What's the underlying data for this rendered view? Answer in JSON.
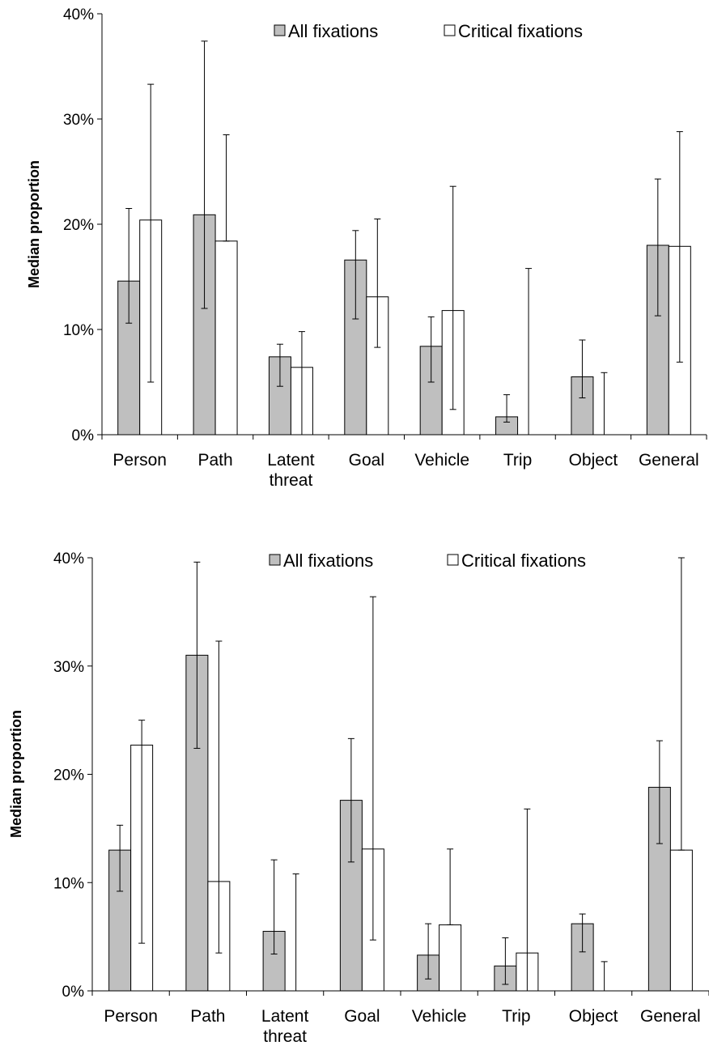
{
  "chart_data": [
    {
      "type": "bar",
      "title": "",
      "xlabel": "",
      "ylabel": "Median proportion",
      "ylim": [
        0,
        40
      ],
      "yticks": [
        "0%",
        "10%",
        "20%",
        "30%",
        "40%"
      ],
      "grid": false,
      "legend_position": "top",
      "categories": [
        "Person",
        "Path",
        "Latent\nthreat",
        "Goal",
        "Vehicle",
        "Trip",
        "Object",
        "General"
      ],
      "series": [
        {
          "name": "All fixations",
          "color": "#bfbfbf",
          "values": [
            14.6,
            20.9,
            7.4,
            16.6,
            8.4,
            1.7,
            5.5,
            18.0
          ],
          "error_low": [
            10.6,
            12.0,
            4.6,
            11.0,
            5.0,
            1.2,
            3.5,
            11.3
          ],
          "error_high": [
            21.5,
            37.4,
            8.6,
            19.4,
            11.2,
            3.8,
            9.0,
            24.3
          ]
        },
        {
          "name": "Critical fixations",
          "color": "#ffffff",
          "values": [
            20.4,
            18.4,
            6.4,
            13.1,
            11.8,
            0.0,
            0.0,
            17.9
          ],
          "error_low": [
            5.0,
            18.4,
            0.0,
            8.3,
            2.4,
            0.0,
            0.0,
            6.9
          ],
          "error_high": [
            33.3,
            28.5,
            9.8,
            20.5,
            23.6,
            15.8,
            5.9,
            28.8
          ]
        }
      ]
    },
    {
      "type": "bar",
      "title": "",
      "xlabel": "",
      "ylabel": "Median proportion",
      "ylim": [
        0,
        40
      ],
      "yticks": [
        "0%",
        "10%",
        "20%",
        "30%",
        "40%"
      ],
      "grid": false,
      "legend_position": "top",
      "categories": [
        "Person",
        "Path",
        "Latent\nthreat",
        "Goal",
        "Vehicle",
        "Trip",
        "Object",
        "General"
      ],
      "series": [
        {
          "name": "All fixations",
          "color": "#bfbfbf",
          "values": [
            13.0,
            31.0,
            5.5,
            17.6,
            3.3,
            2.3,
            6.2,
            18.8
          ],
          "error_low": [
            9.2,
            22.4,
            3.4,
            11.9,
            1.1,
            0.6,
            3.6,
            13.6
          ],
          "error_high": [
            15.3,
            39.6,
            12.1,
            23.3,
            6.2,
            4.9,
            7.1,
            23.1
          ]
        },
        {
          "name": "Critical fixations",
          "color": "#ffffff",
          "values": [
            22.7,
            10.1,
            0.0,
            13.1,
            6.1,
            3.5,
            0.0,
            13.0
          ],
          "error_low": [
            4.4,
            3.5,
            0.0,
            4.7,
            6.1,
            0.0,
            0.0,
            13.0
          ],
          "error_high": [
            25.0,
            32.3,
            10.8,
            36.4,
            13.1,
            16.8,
            2.7,
            40.0
          ]
        }
      ]
    }
  ]
}
